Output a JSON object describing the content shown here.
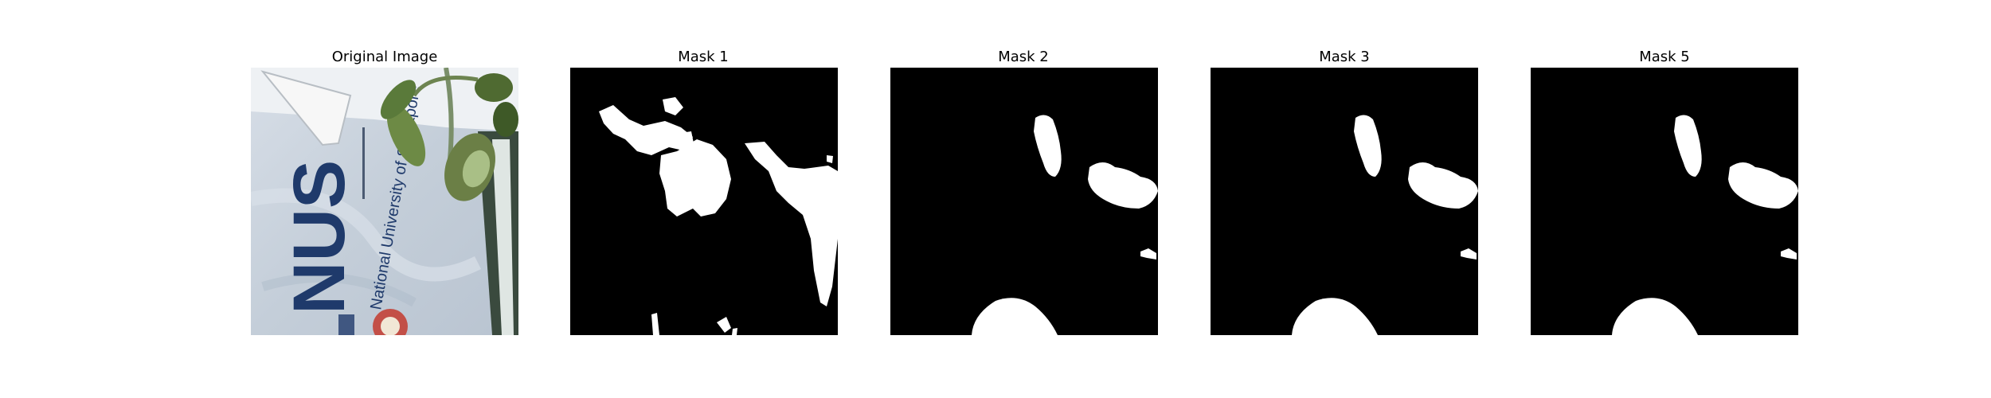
{
  "panels": [
    {
      "title": "Original Image",
      "kind": "photo"
    },
    {
      "title": "Mask 1",
      "kind": "mask"
    },
    {
      "title": "Mask 2",
      "kind": "mask"
    },
    {
      "title": "Mask 3",
      "kind": "mask"
    },
    {
      "title": "Mask 5",
      "kind": "mask"
    }
  ],
  "photo": {
    "logo_text": "NUS",
    "university_name": "National University of Singapore"
  },
  "colors": {
    "figure_background": "#ffffff",
    "mask_background": "#000000",
    "mask_foreground": "#ffffff",
    "banner": "#c9d3de",
    "logo_blue": "#1f3a6b",
    "leaf_green": "#5a7a3a"
  }
}
